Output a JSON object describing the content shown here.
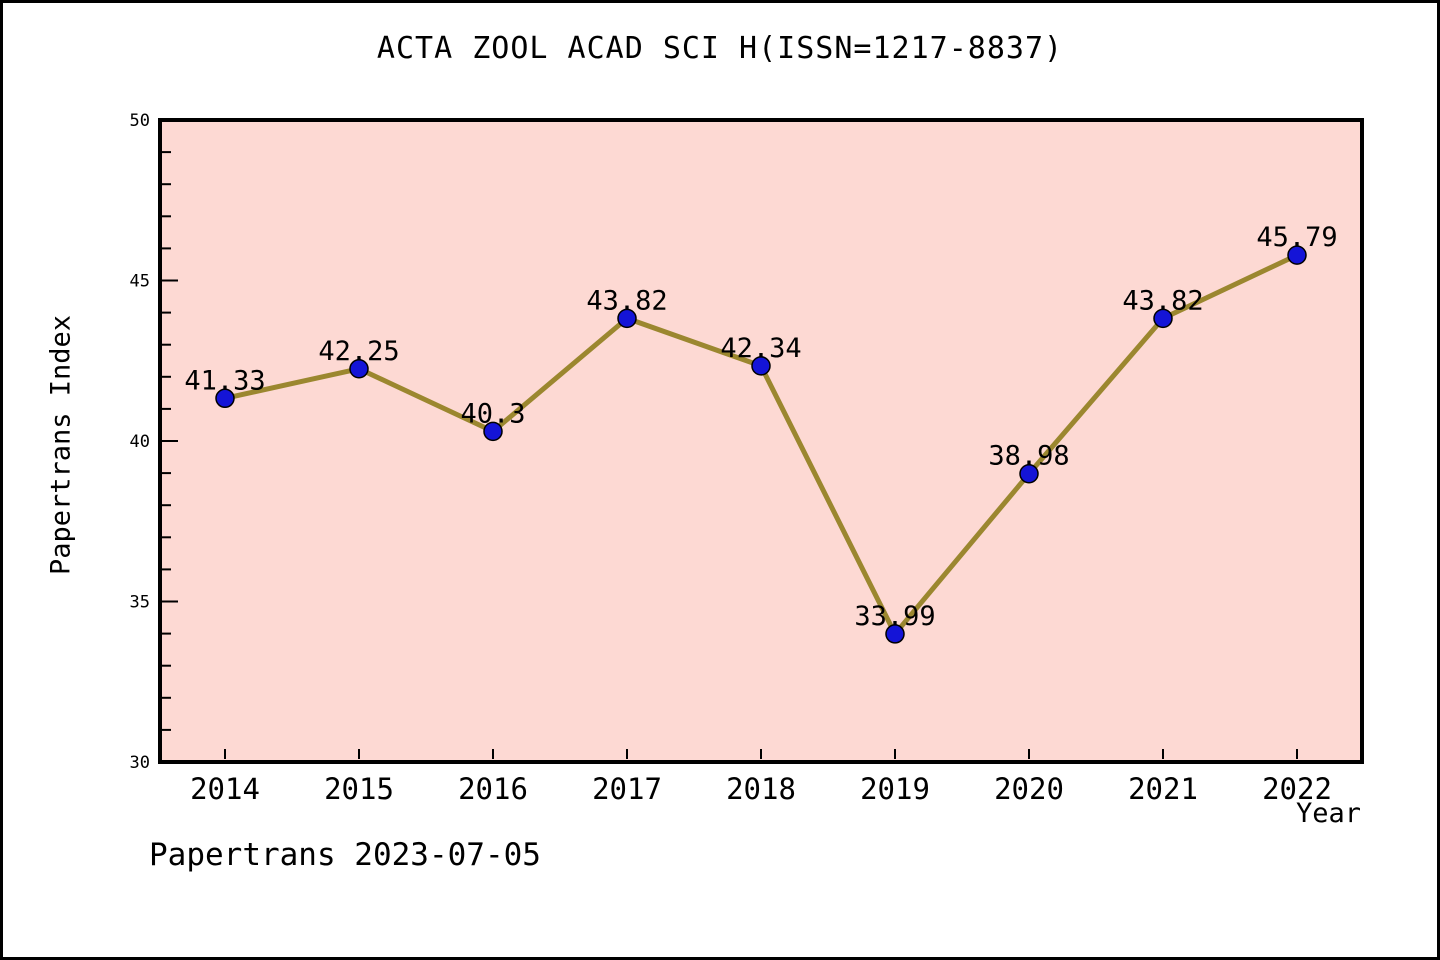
{
  "chart_data": {
    "type": "line",
    "title": "ACTA ZOOL ACAD SCI H(ISSN=1217-8837)",
    "xlabel": "Year",
    "ylabel": "Papertrans Index",
    "x": [
      2014,
      2015,
      2016,
      2017,
      2018,
      2019,
      2020,
      2021,
      2022
    ],
    "series": [
      {
        "name": "Papertrans Index",
        "values": [
          41.33,
          42.25,
          40.3,
          43.82,
          42.34,
          33.99,
          38.98,
          43.82,
          45.79
        ]
      }
    ],
    "point_labels": [
      "41.33",
      "42.25",
      "40.3",
      "43.82",
      "42.34",
      "33.99",
      "38.98",
      "43.82",
      "45.79"
    ],
    "ylim": [
      30,
      50
    ],
    "y_major_ticks": [
      30,
      35,
      40,
      45,
      50
    ],
    "y_minor_step": 1,
    "grid": false,
    "legend_position": "none",
    "colors": {
      "plot_bg": "#fdd9d3",
      "line": "#9b872f",
      "marker": "#1414d7",
      "marker_edge": "#000000",
      "axis": "#000000",
      "text": "#000000"
    }
  },
  "footer": {
    "text": "Papertrans 2023-07-05"
  }
}
